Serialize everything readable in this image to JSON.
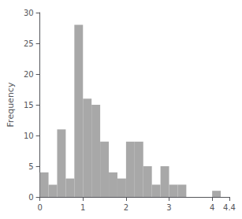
{
  "chart_data": {
    "type": "histogram",
    "bins": [
      0.0,
      0.2,
      0.4,
      0.6,
      0.8,
      1.0,
      1.2,
      1.4,
      1.6,
      1.8,
      2.0,
      2.2,
      2.4,
      2.6,
      2.8,
      3.0,
      3.2,
      3.4,
      3.6,
      3.8,
      4.0,
      4.2,
      4.4
    ],
    "values": [
      4,
      2,
      11,
      3,
      28,
      16,
      15,
      9,
      4,
      3,
      9,
      9,
      5,
      2,
      5,
      2,
      2,
      0,
      0,
      0,
      1,
      0
    ],
    "color": "#a8a8a8",
    "ylabel": "Frequency",
    "xlim": [
      0,
      4.4
    ],
    "ylim": [
      0,
      30
    ],
    "xticks": [
      0,
      1,
      2,
      3,
      4
    ],
    "yticks": [
      0,
      5,
      10,
      15,
      20,
      25,
      30
    ],
    "grid": false
  }
}
